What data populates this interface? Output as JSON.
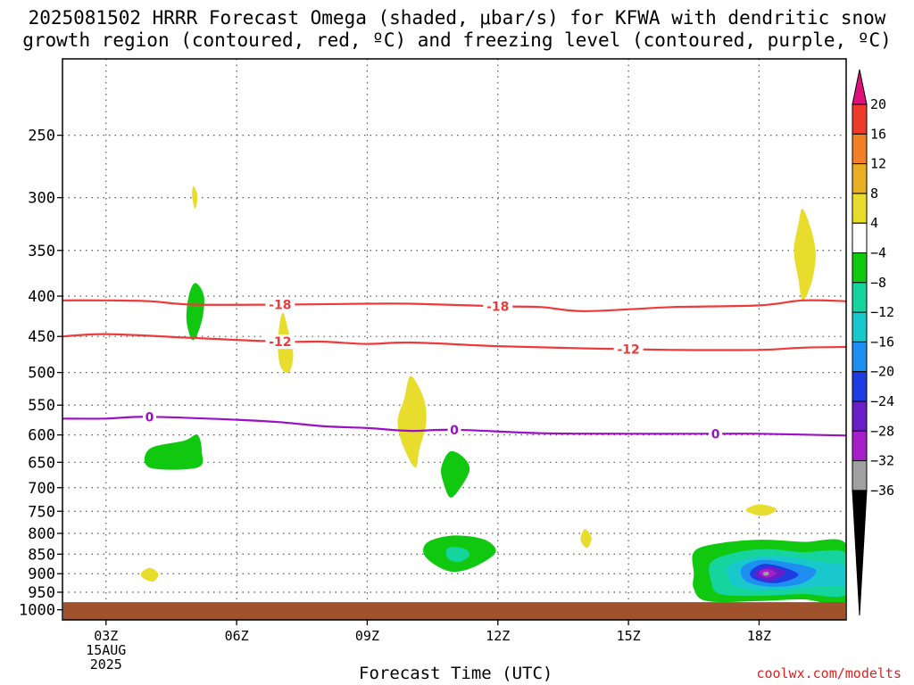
{
  "title_line1": "2025081502 HRRR Forecast Omega (shaded, μbar/s) for KFWA with dendritic snow",
  "title_line2": "growth region (contoured, red, ºC) and freezing level (contoured, purple, ºC)",
  "x_axis_title": "Forecast Time (UTC)",
  "credit": "coolwx.com/modelts",
  "date_label_1": "15AUG",
  "date_label_2": "2025",
  "chart_data": {
    "type": "heatmap",
    "y_axis": {
      "scale": "log-pressure",
      "unit": "hPa",
      "range": [
        1030,
        200
      ],
      "reversed": true,
      "ticks": [
        250,
        300,
        350,
        400,
        450,
        500,
        550,
        600,
        650,
        700,
        750,
        800,
        850,
        900,
        950,
        1000
      ]
    },
    "x_axis": {
      "unit": "hour UTC",
      "range": [
        2,
        20
      ],
      "ticks": [
        3,
        6,
        9,
        12,
        15,
        18
      ],
      "tick_labels": [
        "03Z",
        "06Z",
        "09Z",
        "12Z",
        "15Z",
        "18Z"
      ]
    },
    "grid": true,
    "colorbar": {
      "labels": [
        "20",
        "16",
        "12",
        "8",
        "4",
        "−4",
        "−8",
        "−12",
        "−16",
        "−20",
        "−24",
        "−28",
        "−32",
        "−36"
      ],
      "colors": [
        "#e0107a",
        "#ee3a2a",
        "#f07f26",
        "#e8ae26",
        "#e8dc2c",
        "#ffffff",
        "#10c810",
        "#16d49e",
        "#18c8cc",
        "#1e8ff0",
        "#1e3ce0",
        "#6a1ec8",
        "#a61ec8",
        "#a0a0a0",
        "#000000"
      ]
    },
    "shaded_regions": [
      {
        "omega": 6,
        "color": "#e8dc2c",
        "points": [
          [
            5.0,
            290
          ],
          [
            5.1,
            298
          ],
          [
            5.05,
            310
          ],
          [
            4.98,
            300
          ]
        ]
      },
      {
        "omega": 6,
        "color": "#e8dc2c",
        "points": [
          [
            19.0,
            310
          ],
          [
            19.2,
            330
          ],
          [
            19.3,
            355
          ],
          [
            19.2,
            385
          ],
          [
            19.0,
            405
          ],
          [
            18.9,
            380
          ],
          [
            18.8,
            350
          ],
          [
            18.9,
            325
          ]
        ]
      },
      {
        "omega": -6,
        "color": "#10c810",
        "points": [
          [
            4.9,
            400
          ],
          [
            5.05,
            385
          ],
          [
            5.25,
            400
          ],
          [
            5.2,
            430
          ],
          [
            5.0,
            455
          ],
          [
            4.85,
            430
          ]
        ]
      },
      {
        "omega": 6,
        "color": "#e8dc2c",
        "points": [
          [
            7.05,
            420
          ],
          [
            7.2,
            445
          ],
          [
            7.3,
            475
          ],
          [
            7.2,
            500
          ],
          [
            7.0,
            490
          ],
          [
            6.95,
            455
          ]
        ]
      },
      {
        "omega": 6,
        "color": "#e8dc2c",
        "points": [
          [
            10.0,
            505
          ],
          [
            10.3,
            540
          ],
          [
            10.35,
            580
          ],
          [
            10.2,
            625
          ],
          [
            10.1,
            660
          ],
          [
            9.8,
            615
          ],
          [
            9.7,
            575
          ],
          [
            9.85,
            540
          ]
        ]
      },
      {
        "omega": -6,
        "color": "#10c810",
        "points": [
          [
            4.0,
            625
          ],
          [
            4.8,
            610
          ],
          [
            5.1,
            600
          ],
          [
            5.2,
            630
          ],
          [
            5.1,
            660
          ],
          [
            4.0,
            660
          ]
        ]
      },
      {
        "omega": -6,
        "color": "#10c810",
        "points": [
          [
            10.9,
            630
          ],
          [
            11.2,
            640
          ],
          [
            11.35,
            665
          ],
          [
            11.1,
            705
          ],
          [
            10.9,
            720
          ],
          [
            10.75,
            690
          ],
          [
            10.7,
            660
          ]
        ]
      },
      {
        "omega": 6,
        "color": "#e8dc2c",
        "points": [
          [
            4.0,
            885
          ],
          [
            4.2,
            900
          ],
          [
            4.1,
            920
          ],
          [
            3.9,
            915
          ],
          [
            3.8,
            900
          ]
        ]
      },
      {
        "omega": 6,
        "color": "#e8dc2c",
        "points": [
          [
            14.0,
            790
          ],
          [
            14.15,
            810
          ],
          [
            14.05,
            835
          ],
          [
            13.9,
            815
          ]
        ]
      },
      {
        "omega": 6,
        "color": "#e8dc2c",
        "points": [
          [
            18.0,
            735
          ],
          [
            18.4,
            745
          ],
          [
            18.1,
            760
          ],
          [
            17.7,
            748
          ]
        ]
      },
      {
        "omega": -6,
        "color": "#10c810",
        "points": [
          [
            10.4,
            820
          ],
          [
            11.0,
            805
          ],
          [
            11.7,
            815
          ],
          [
            11.95,
            845
          ],
          [
            11.5,
            880
          ],
          [
            11.0,
            895
          ],
          [
            10.6,
            880
          ],
          [
            10.3,
            850
          ]
        ]
      },
      {
        "omega": -10,
        "color": "#16d49e",
        "points": [
          [
            10.85,
            835
          ],
          [
            11.2,
            835
          ],
          [
            11.35,
            852
          ],
          [
            11.1,
            870
          ],
          [
            10.85,
            860
          ]
        ]
      },
      {
        "omega": -6,
        "color": "#10c810",
        "points": [
          [
            16.5,
            845
          ],
          [
            17.0,
            825
          ],
          [
            18.0,
            815
          ],
          [
            19.0,
            820
          ],
          [
            20.0,
            825
          ],
          [
            20.0,
            975
          ],
          [
            19.0,
            970
          ],
          [
            18.0,
            975
          ],
          [
            16.8,
            975
          ],
          [
            16.5,
            940
          ],
          [
            16.5,
            900
          ]
        ]
      },
      {
        "omega": -10,
        "color": "#16d49e",
        "points": [
          [
            16.9,
            870
          ],
          [
            17.5,
            845
          ],
          [
            18.2,
            838
          ],
          [
            19.0,
            845
          ],
          [
            20.0,
            848
          ],
          [
            20.0,
            955
          ],
          [
            19.0,
            955
          ],
          [
            18.0,
            960
          ],
          [
            17.1,
            955
          ],
          [
            16.9,
            920
          ]
        ]
      },
      {
        "omega": -14,
        "color": "#18c8cc",
        "points": [
          [
            17.3,
            880
          ],
          [
            17.8,
            860
          ],
          [
            18.5,
            855
          ],
          [
            19.5,
            870
          ],
          [
            20.0,
            880
          ],
          [
            20.0,
            930
          ],
          [
            19.3,
            935
          ],
          [
            18.3,
            945
          ],
          [
            17.5,
            935
          ],
          [
            17.3,
            910
          ]
        ]
      },
      {
        "omega": -18,
        "color": "#1e8ff0",
        "points": [
          [
            17.6,
            885
          ],
          [
            18.0,
            865
          ],
          [
            18.6,
            870
          ],
          [
            19.3,
            890
          ],
          [
            19.0,
            925
          ],
          [
            18.3,
            935
          ],
          [
            17.7,
            920
          ]
        ]
      },
      {
        "omega": -22,
        "color": "#1e3ce0",
        "points": [
          [
            17.8,
            895
          ],
          [
            18.1,
            875
          ],
          [
            18.6,
            885
          ],
          [
            18.9,
            905
          ],
          [
            18.4,
            925
          ],
          [
            17.9,
            915
          ]
        ]
      },
      {
        "omega": -26,
        "color": "#6a1ec8",
        "points": [
          [
            17.9,
            900
          ],
          [
            18.2,
            882
          ],
          [
            18.6,
            895
          ],
          [
            18.3,
            918
          ],
          [
            18.0,
            912
          ]
        ]
      },
      {
        "omega": -30,
        "color": "#a61ec8",
        "points": [
          [
            18.0,
            895
          ],
          [
            18.2,
            888
          ],
          [
            18.4,
            900
          ],
          [
            18.15,
            910
          ]
        ]
      },
      {
        "omega": -34,
        "color": "#a0a0a0",
        "points": [
          [
            18.1,
            897
          ],
          [
            18.2,
            895
          ],
          [
            18.22,
            903
          ],
          [
            18.12,
            905
          ]
        ]
      }
    ],
    "contours": [
      {
        "label": "-18",
        "color": "#ee3a3a",
        "points": [
          [
            2.0,
            405
          ],
          [
            3.0,
            405
          ],
          [
            4.0,
            406
          ],
          [
            5.0,
            410
          ],
          [
            7.0,
            410
          ],
          [
            9.0,
            409
          ],
          [
            10.0,
            409
          ],
          [
            12.0,
            412
          ],
          [
            13.0,
            413
          ],
          [
            14.0,
            418
          ],
          [
            16.0,
            413
          ],
          [
            18.0,
            411
          ],
          [
            19.0,
            405
          ],
          [
            20.0,
            406
          ]
        ],
        "label_positions": [
          [
            7.0,
            410
          ],
          [
            12.0,
            412
          ]
        ]
      },
      {
        "label": "-12",
        "color": "#ee3a3a",
        "points": [
          [
            2.0,
            450
          ],
          [
            3.0,
            447
          ],
          [
            5.0,
            452
          ],
          [
            7.0,
            457
          ],
          [
            8.0,
            457
          ],
          [
            9.0,
            460
          ],
          [
            10.0,
            458
          ],
          [
            12.0,
            463
          ],
          [
            14.0,
            466
          ],
          [
            16.0,
            468
          ],
          [
            18.0,
            468
          ],
          [
            19.0,
            465
          ],
          [
            20.0,
            464
          ]
        ],
        "label_positions": [
          [
            7.0,
            457
          ],
          [
            15.0,
            467
          ]
        ]
      },
      {
        "label": "0",
        "color": "#9a10c8",
        "points": [
          [
            2.0,
            572
          ],
          [
            3.0,
            572
          ],
          [
            4.0,
            569
          ],
          [
            6.0,
            574
          ],
          [
            7.0,
            578
          ],
          [
            8.0,
            585
          ],
          [
            9.0,
            588
          ],
          [
            10.0,
            593
          ],
          [
            11.0,
            591
          ],
          [
            13.0,
            597
          ],
          [
            15.0,
            598
          ],
          [
            17.0,
            598
          ],
          [
            18.0,
            598
          ],
          [
            20.0,
            601
          ]
        ],
        "label_positions": [
          [
            4.0,
            569
          ],
          [
            11.0,
            591
          ],
          [
            17.0,
            598
          ]
        ]
      }
    ],
    "ground": {
      "color": "#a0522d",
      "top_pressure": 978
    }
  }
}
